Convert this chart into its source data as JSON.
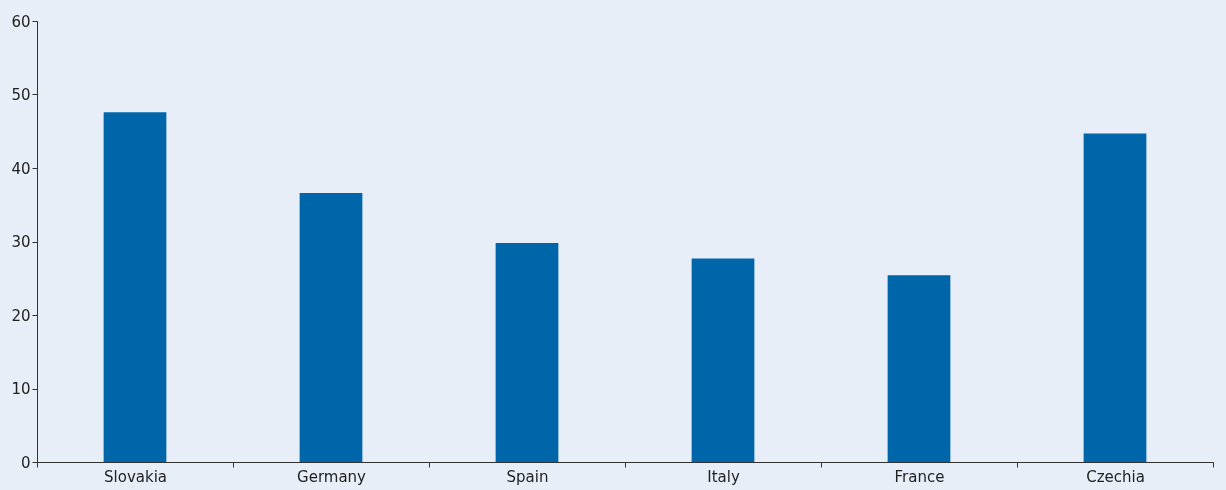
{
  "chart_data": {
    "type": "bar",
    "categories": [
      "Slovakia",
      "Germany",
      "Spain",
      "Italy",
      "France",
      "Czechia"
    ],
    "values": [
      47.6,
      36.6,
      29.8,
      27.7,
      25.4,
      44.7
    ],
    "color": "#0066aa",
    "ylim": [
      0,
      60
    ],
    "yticks": [
      0,
      10,
      20,
      30,
      40,
      50,
      60
    ],
    "grid": false
  }
}
